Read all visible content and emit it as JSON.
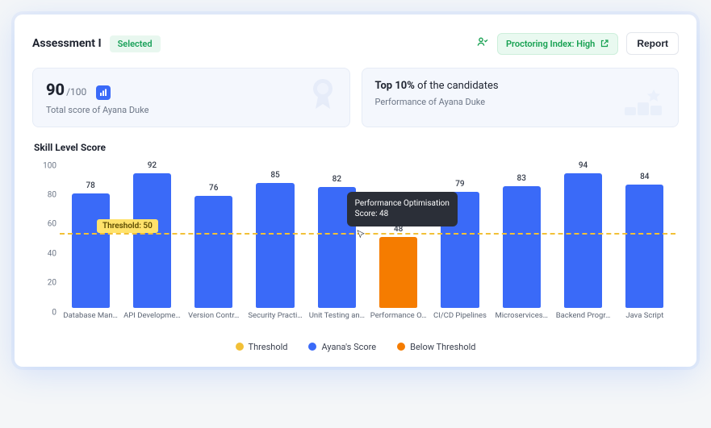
{
  "header": {
    "title": "Assessment I",
    "status_badge": "Selected",
    "proctoring_label": "Proctoring Index: High",
    "report_button": "Report"
  },
  "tiles": {
    "score": {
      "value": "90",
      "max": "/100",
      "subtitle": "Total score of Ayana Duke"
    },
    "rank": {
      "headline_bold": "Top 10%",
      "headline_rest": " of the candidates",
      "subtitle": "Performance of Ayana Duke"
    }
  },
  "chart": {
    "title": "Skill Level Score",
    "type": "bar",
    "ylim": [
      0,
      100
    ],
    "ytick_step": 20,
    "yticks": [
      0,
      20,
      40,
      60,
      80,
      100
    ],
    "bar_width_pct": 62,
    "grid": false,
    "colors": {
      "series": "#3a6af8",
      "below_threshold": "#f57c00",
      "threshold_line": "#f2c037",
      "threshold_tag_bg": "#ffe26b",
      "threshold_tag_text": "#5a4a00",
      "text": "#6c7686",
      "background": "#ffffff",
      "tooltip_bg": "#2b2f38"
    },
    "threshold": {
      "value": 50,
      "label": "Threshold: 50"
    },
    "categories": [
      "Database Man…",
      "API Developme…",
      "Version Contr…",
      "Security Practi…",
      "Unit Testing an…",
      "Performance O…",
      "CI/CD Pipelines",
      "Microservices…",
      "Backend Progr…",
      "Java Script"
    ],
    "values": [
      78,
      92,
      76,
      85,
      82,
      48,
      79,
      83,
      94,
      84
    ],
    "below_threshold_index": 5,
    "tooltip": {
      "line1": "Performance Optimisation",
      "line2": "Score: 48",
      "anchor_index": 5
    },
    "legend": [
      {
        "label": "Threshold",
        "color": "#f2c037"
      },
      {
        "label": "Ayana's Score",
        "color": "#3a6af8"
      },
      {
        "label": "Below Threshold",
        "color": "#f57c00"
      }
    ]
  },
  "typography": {
    "title_fontsize": 14,
    "chart_title_fontsize": 12,
    "axis_fontsize": 10,
    "label_fontsize": 9.5
  }
}
